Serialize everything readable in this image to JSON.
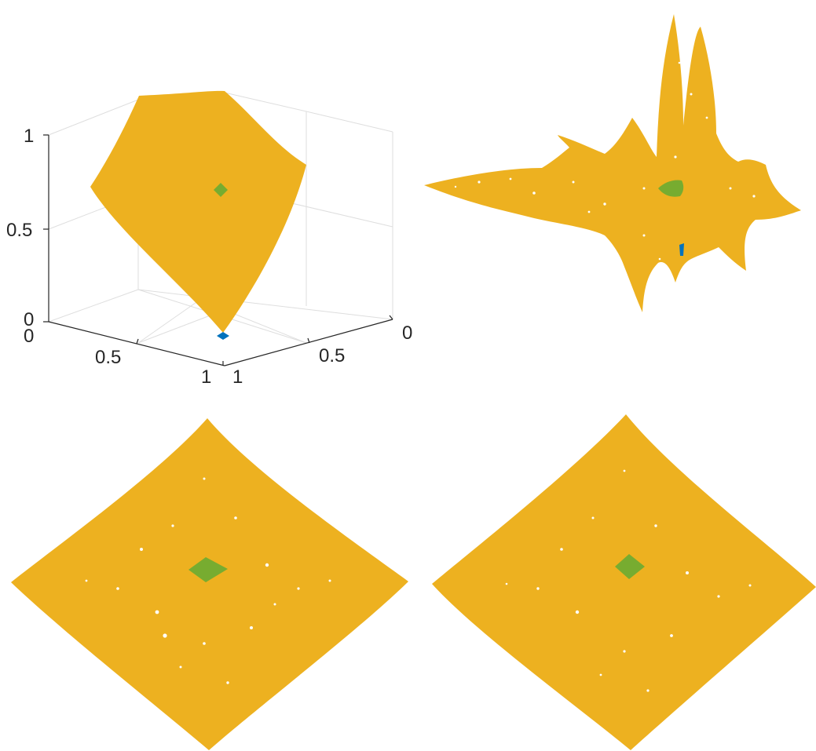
{
  "colors": {
    "surface": "#EDB120",
    "marker_green": "#77AC30",
    "marker_blue": "#0072BD",
    "axis": "#262626",
    "grid": "#dedede",
    "background": "#ffffff"
  },
  "chart_data": [
    {
      "type": "surface3d",
      "panel": "top-left",
      "axes": {
        "x": {
          "ticks": [
            "0",
            "0.5",
            "1"
          ],
          "range": [
            0,
            1
          ]
        },
        "y": {
          "ticks": [
            "0",
            "0.5",
            "1"
          ],
          "range": [
            0,
            1
          ]
        },
        "z": {
          "ticks": [
            "0",
            "0.5",
            "1"
          ],
          "range": [
            0,
            1
          ]
        }
      },
      "grid": true,
      "series": [
        {
          "kind": "surface",
          "color": "#EDB120"
        },
        {
          "kind": "marker",
          "shape": "diamond",
          "color": "#77AC30",
          "position": "center"
        },
        {
          "kind": "marker",
          "shape": "diamond",
          "color": "#0072BD",
          "position": "bottom vertex"
        }
      ]
    },
    {
      "type": "scatter",
      "panel": "top-right",
      "description_shape": "spiky point cloud",
      "series": [
        {
          "kind": "points",
          "color": "#EDB120"
        },
        {
          "kind": "points",
          "color": "#77AC30"
        },
        {
          "kind": "points",
          "color": "#0072BD"
        }
      ]
    },
    {
      "type": "scatter",
      "panel": "bottom-left",
      "series": [
        {
          "kind": "points",
          "color": "#EDB120"
        },
        {
          "kind": "points",
          "color": "#77AC30"
        }
      ]
    },
    {
      "type": "scatter",
      "panel": "bottom-right",
      "series": [
        {
          "kind": "points",
          "color": "#EDB120"
        },
        {
          "kind": "points",
          "color": "#77AC30"
        }
      ]
    }
  ]
}
